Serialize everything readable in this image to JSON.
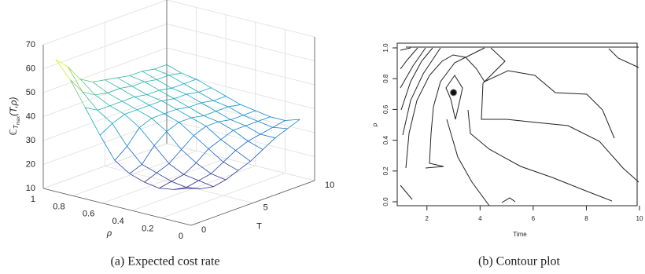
{
  "chart_data": [
    {
      "type": "mesh3d",
      "zlabel": {
        "symbol": "ℂ",
        "sub": "T",
        "subsub": "max",
        "args": "(T,ρ)"
      },
      "xlabel": "ρ",
      "ylabel": "T",
      "rho": [
        1,
        0.9,
        0.8,
        0.7,
        0.6,
        0.5,
        0.4,
        0.3,
        0.2,
        0.1
      ],
      "T": [
        1,
        2,
        3,
        4,
        5,
        6,
        7,
        8,
        9,
        10
      ],
      "z": [
        [
          62,
          57,
          50,
          47,
          46,
          45,
          44,
          44,
          43,
          43
        ],
        [
          55,
          48,
          45,
          44,
          44,
          43,
          43,
          42,
          42,
          41
        ],
        [
          45,
          42,
          42,
          42,
          42,
          41,
          41,
          40,
          40,
          40
        ],
        [
          35,
          38,
          40,
          40,
          40,
          40,
          39,
          39,
          38,
          38
        ],
        [
          26,
          30,
          36,
          38,
          38,
          38,
          37,
          37,
          36,
          36
        ],
        [
          22,
          24,
          30,
          34,
          36,
          36,
          35,
          35,
          35,
          34
        ],
        [
          20,
          22,
          24,
          28,
          32,
          34,
          34,
          33,
          33,
          33
        ],
        [
          19,
          20,
          21,
          24,
          28,
          30,
          32,
          32,
          32,
          32
        ],
        [
          20,
          19,
          20,
          21,
          24,
          27,
          29,
          30,
          31,
          32
        ],
        [
          22,
          20,
          19,
          20,
          22,
          24,
          27,
          30,
          32,
          34
        ]
      ],
      "xlim": [
        0,
        1
      ],
      "xticks": [
        0,
        0.2,
        0.4,
        0.6,
        0.8,
        1
      ],
      "ylim": [
        0,
        10
      ],
      "yticks": [
        0,
        5,
        10
      ],
      "zlim": [
        10,
        70
      ],
      "zticks": [
        10,
        20,
        30,
        40,
        50,
        60,
        70
      ],
      "grid": true,
      "caption": "(a) Expected cost rate"
    },
    {
      "type": "contour",
      "xlabel": "Time",
      "ylabel": "ρ",
      "xlim": [
        1,
        10
      ],
      "xticks": [
        2,
        4,
        6,
        8,
        10
      ],
      "ylim": [
        0,
        1
      ],
      "yticks": [
        {
          "value": 0,
          "label": "0.0"
        },
        0.2,
        0.4,
        0.6,
        0.8,
        {
          "value": 1,
          "label": "1.0"
        }
      ],
      "point": {
        "x": 3,
        "y": 0.71
      },
      "caption": "(b) Contour plot"
    }
  ]
}
